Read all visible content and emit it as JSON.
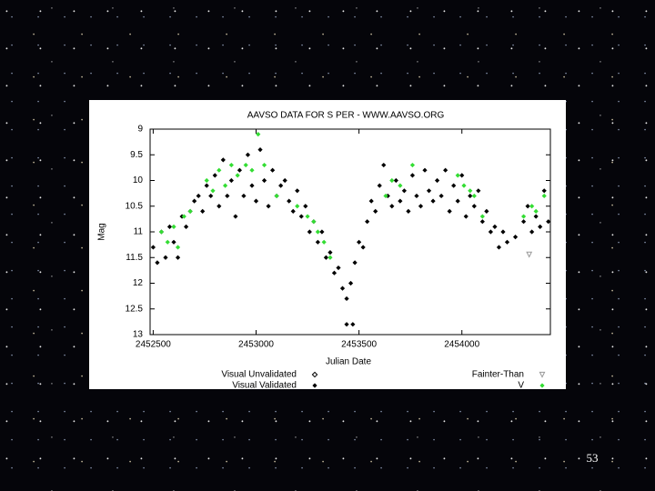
{
  "chart_data": {
    "type": "scatter",
    "title": "AAVSO DATA FOR S PER - WWW.AAVSO.ORG",
    "x_label": "Julian Date",
    "y_label": "Mag",
    "xlim": [
      2452485,
      2454430
    ],
    "ylim": [
      9,
      13
    ],
    "y_inverted": true,
    "xticks": [
      2452500,
      2453000,
      2453500,
      2454000
    ],
    "yticks": [
      9,
      9.5,
      10,
      10.5,
      11,
      11.5,
      12,
      12.5,
      13
    ],
    "grid": false,
    "series": [
      {
        "name": "Visual Unvalidated",
        "color": "#000000",
        "marker": "diamond-open",
        "x": [],
        "values": []
      },
      {
        "name": "Visual Validated",
        "color": "#000000",
        "marker": "diamond-filled",
        "x": [
          2452500,
          2452520,
          2452540,
          2452560,
          2452580,
          2452600,
          2452620,
          2452640,
          2452660,
          2452680,
          2452700,
          2452720,
          2452740,
          2452760,
          2452780,
          2452800,
          2452820,
          2452840,
          2452860,
          2452880,
          2452900,
          2452920,
          2452940,
          2452960,
          2452980,
          2453000,
          2453020,
          2453040,
          2453060,
          2453080,
          2453100,
          2453120,
          2453140,
          2453160,
          2453180,
          2453200,
          2453220,
          2453240,
          2453260,
          2453280,
          2453300,
          2453320,
          2453340,
          2453360,
          2453380,
          2453400,
          2453420,
          2453440,
          2453460,
          2453480,
          2453500,
          2453520,
          2453540,
          2453560,
          2453580,
          2453600,
          2453620,
          2453640,
          2453660,
          2453680,
          2453700,
          2453720,
          2453740,
          2453760,
          2453780,
          2453800,
          2453820,
          2453840,
          2453860,
          2453880,
          2453900,
          2453920,
          2453940,
          2453960,
          2453980,
          2454000,
          2454020,
          2454040,
          2454060,
          2454080,
          2454100,
          2454120,
          2454140,
          2454160,
          2454180,
          2454200,
          2454220,
          2454260,
          2454300,
          2454320,
          2454340,
          2454360,
          2454380,
          2454400,
          2454420,
          2453440,
          2453470
        ],
        "values": [
          11.3,
          11.6,
          11.0,
          11.5,
          10.9,
          11.2,
          11.5,
          10.7,
          10.9,
          10.6,
          10.4,
          10.3,
          10.6,
          10.1,
          10.3,
          9.9,
          10.5,
          9.6,
          10.3,
          10.0,
          10.7,
          9.8,
          10.3,
          9.5,
          10.1,
          10.4,
          9.4,
          10.0,
          10.5,
          9.8,
          10.3,
          10.1,
          10.0,
          10.4,
          10.6,
          10.2,
          10.7,
          10.5,
          11.0,
          10.8,
          11.2,
          11.0,
          11.5,
          11.4,
          11.8,
          11.7,
          12.1,
          12.3,
          12.0,
          11.6,
          11.2,
          11.3,
          10.8,
          10.4,
          10.6,
          10.1,
          9.7,
          10.3,
          10.5,
          10.0,
          10.4,
          10.2,
          10.6,
          9.9,
          10.3,
          10.5,
          9.8,
          10.2,
          10.4,
          10.0,
          10.3,
          9.8,
          10.6,
          10.1,
          10.4,
          9.9,
          10.7,
          10.3,
          10.5,
          10.2,
          10.8,
          10.6,
          11.0,
          10.9,
          11.3,
          11.0,
          11.2,
          11.1,
          10.8,
          10.5,
          11.0,
          10.7,
          10.9,
          10.2,
          10.8,
          12.8,
          12.8
        ]
      },
      {
        "name": "Fainter-Than",
        "color": "#999999",
        "marker": "triangle-down",
        "x": [
          2454327
        ],
        "values": [
          11.44
        ]
      },
      {
        "name": "V",
        "color": "#33dd33",
        "marker": "diamond-filled",
        "x": [
          2452540,
          2452570,
          2452600,
          2452620,
          2452650,
          2452680,
          2452760,
          2452790,
          2452820,
          2452850,
          2452880,
          2452910,
          2452950,
          2452980,
          2453010,
          2453040,
          2453100,
          2453200,
          2453250,
          2453280,
          2453300,
          2453330,
          2453360,
          2453630,
          2453660,
          2453700,
          2453760,
          2453980,
          2454010,
          2454040,
          2454060,
          2454100,
          2454300,
          2454340,
          2454360,
          2454400
        ],
        "values": [
          11.0,
          11.2,
          10.9,
          11.3,
          10.7,
          10.6,
          10.0,
          10.2,
          9.8,
          10.1,
          9.7,
          9.9,
          9.7,
          9.8,
          9.1,
          9.7,
          10.3,
          10.5,
          10.7,
          10.8,
          11.0,
          11.2,
          11.5,
          10.3,
          10.0,
          10.1,
          9.7,
          9.9,
          10.1,
          10.2,
          10.3,
          10.7,
          10.7,
          10.5,
          10.6,
          10.3
        ]
      }
    ]
  },
  "page_number": "53"
}
